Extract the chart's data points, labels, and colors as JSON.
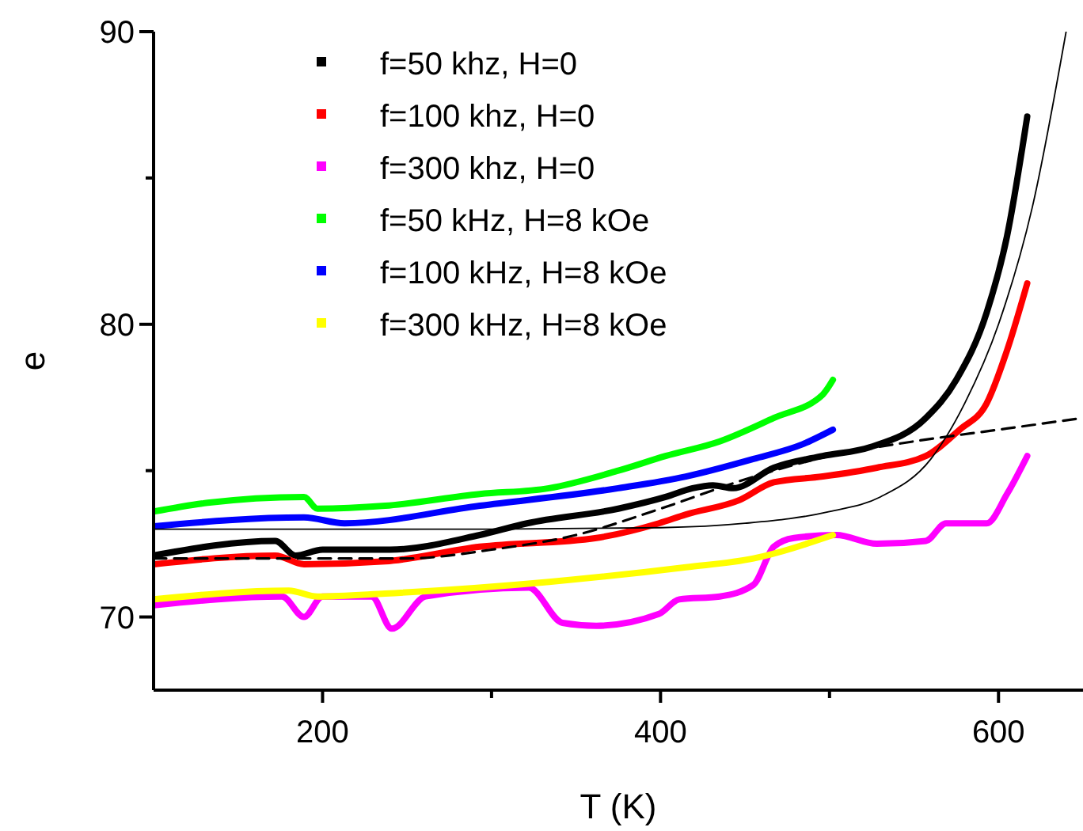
{
  "chart_data": {
    "type": "line",
    "xlabel": "T (K)",
    "ylabel": "e",
    "xlim": [
      100,
      650
    ],
    "ylim": [
      67.5,
      90
    ],
    "xticks": [
      200,
      {
        "value": 300,
        "label": null
      },
      400,
      {
        "value": 500,
        "label": null
      },
      600
    ],
    "yticks": [
      70,
      {
        "value": 75,
        "label": null
      },
      80,
      {
        "value": 85,
        "label": null
      },
      90
    ],
    "grid": false,
    "legend": "top",
    "line_style": "solid",
    "series": [
      {
        "name": "f=50 khz, H=0",
        "color": "#000000",
        "x": [
          100,
          172,
          184,
          200,
          240,
          293,
          321,
          375,
          403,
          419,
          431,
          443,
          467,
          496,
          524,
          557,
          575,
          593,
          605,
          617
        ],
        "values": [
          72.1,
          72.6,
          72.1,
          72.3,
          72.3,
          72.8,
          73.2,
          73.7,
          74.1,
          74.4,
          74.5,
          74.4,
          75.1,
          75.5,
          75.8,
          76.8,
          78.1,
          80.4,
          83.0,
          87.1
        ]
      },
      {
        "name": "f=100 khz, H=0",
        "color": "#ff0000",
        "x": [
          100,
          172,
          189,
          237,
          293,
          362,
          399,
          415,
          447,
          467,
          496,
          528,
          557,
          577,
          593,
          605,
          617
        ],
        "values": [
          71.8,
          72.1,
          71.8,
          71.9,
          72.4,
          72.7,
          73.2,
          73.5,
          74.0,
          74.6,
          74.8,
          75.1,
          75.5,
          76.4,
          77.3,
          79.1,
          81.4
        ]
      },
      {
        "name": "f=300 khz, H=0",
        "color": "#ff00ff",
        "x": [
          100,
          176,
          189,
          200,
          229,
          241,
          261,
          322,
          342,
          362,
          399,
          411,
          435,
          455,
          467,
          479,
          504,
          528,
          557,
          569,
          593,
          605,
          617
        ],
        "values": [
          70.4,
          70.7,
          70.0,
          70.7,
          70.7,
          69.6,
          70.7,
          71.0,
          69.8,
          69.7,
          70.1,
          70.6,
          70.7,
          71.1,
          72.4,
          72.7,
          72.8,
          72.5,
          72.6,
          73.2,
          73.2,
          74.2,
          75.5
        ]
      },
      {
        "name": "f=50 kHz, H=8 kOe",
        "color": "#00ff00",
        "x": [
          100,
          132,
          189,
          197,
          237,
          293,
          334,
          375,
          403,
          435,
          467,
          496,
          502
        ],
        "values": [
          73.6,
          73.9,
          74.1,
          73.7,
          73.8,
          74.2,
          74.4,
          75.0,
          75.5,
          76.0,
          76.8,
          77.6,
          78.1
        ]
      },
      {
        "name": "f=100 kHz, H=8 kOe",
        "color": "#0000ff",
        "x": [
          100,
          189,
          213,
          293,
          375,
          415,
          455,
          484,
          502
        ],
        "values": [
          73.1,
          73.4,
          73.2,
          73.8,
          74.4,
          74.8,
          75.4,
          75.9,
          76.4
        ]
      },
      {
        "name": "f=300 kHz, H=8 kOe",
        "color": "#ffff00",
        "x": [
          100,
          180,
          197,
          237,
          334,
          415,
          455,
          502
        ],
        "values": [
          70.6,
          70.9,
          70.7,
          70.8,
          71.2,
          71.7,
          72.0,
          72.8
        ]
      },
      {
        "color": "#000000",
        "line_style": "dashed",
        "x": [
          100,
          200,
          250,
          300,
          350,
          400,
          450,
          500,
          550,
          600,
          650
        ],
        "values": [
          72.0,
          72.0,
          72.0,
          72.3,
          72.8,
          73.7,
          74.7,
          75.5,
          76.0,
          76.4,
          76.8
        ]
      },
      {
        "color": "#000000",
        "line_style": "solid",
        "x": [
          100,
          300,
          400,
          450,
          500,
          530,
          560,
          580,
          600,
          620,
          640
        ],
        "values": [
          73.0,
          73.0,
          73.05,
          73.2,
          73.6,
          74.1,
          75.4,
          77.3,
          80.0,
          84.0,
          90.0
        ]
      }
    ]
  }
}
